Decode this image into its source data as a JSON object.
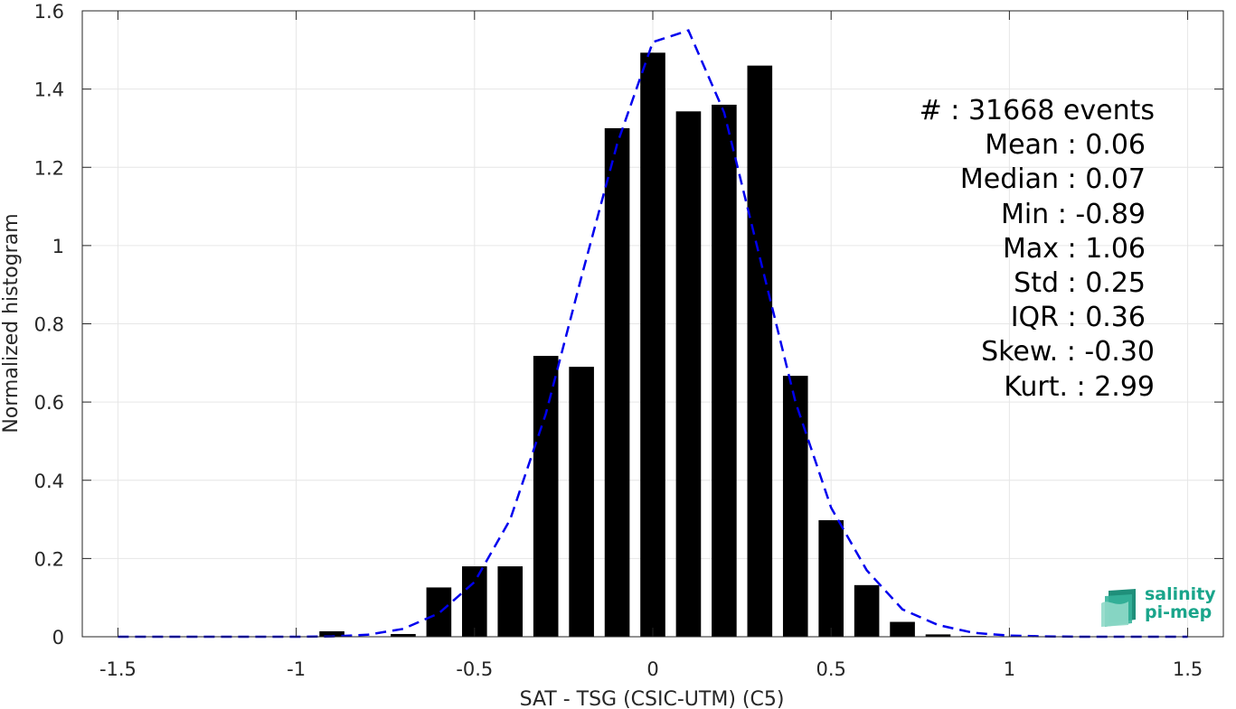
{
  "chart_data": {
    "type": "bar",
    "xlabel": "SAT - TSG (CSIC-UTM) (C5)",
    "ylabel": "Normalized histogram",
    "xlim": [
      -1.6,
      1.6
    ],
    "ylim": [
      0,
      1.6
    ],
    "xticks": [
      -1.5,
      -1,
      -0.5,
      0,
      0.5,
      1,
      1.5
    ],
    "xtick_labels": [
      "-1.5",
      "-1",
      "-0.5",
      "0",
      "0.5",
      "1",
      "1.5"
    ],
    "yticks": [
      0,
      0.2,
      0.4,
      0.6,
      0.8,
      1,
      1.2,
      1.4,
      1.6
    ],
    "ytick_labels": [
      "0",
      "0.2",
      "0.4",
      "0.6",
      "0.8",
      "1",
      "1.2",
      "1.4",
      "1.6"
    ],
    "grid": true,
    "bar_width": 0.07,
    "bars": {
      "x": [
        -0.9,
        -0.8,
        -0.7,
        -0.6,
        -0.5,
        -0.4,
        -0.3,
        -0.2,
        -0.1,
        0,
        0.1,
        0.2,
        0.3,
        0.4,
        0.5,
        0.6,
        0.7,
        0.8,
        0.9,
        1.0
      ],
      "values": [
        0.014,
        0.001,
        0.007,
        0.126,
        0.18,
        0.18,
        0.718,
        0.69,
        1.3,
        1.493,
        1.343,
        1.36,
        1.46,
        0.667,
        0.298,
        0.132,
        0.038,
        0.006,
        0.002,
        0.001
      ],
      "color": "#000000"
    },
    "fit": {
      "style": "dashed",
      "color": "#0000ee",
      "x": [
        -1.5,
        -1.4,
        -1.3,
        -1.2,
        -1.1,
        -1.0,
        -0.9,
        -0.8,
        -0.7,
        -0.6,
        -0.5,
        -0.4,
        -0.3,
        -0.2,
        -0.1,
        0,
        0.1,
        0.2,
        0.3,
        0.4,
        0.5,
        0.6,
        0.7,
        0.8,
        0.9,
        1.0,
        1.1,
        1.2,
        1.3,
        1.4,
        1.5
      ],
      "y": [
        0,
        0,
        0,
        0,
        0,
        0,
        0.001,
        0.005,
        0.02,
        0.06,
        0.14,
        0.3,
        0.57,
        0.92,
        1.26,
        1.52,
        1.55,
        1.34,
        0.97,
        0.6,
        0.33,
        0.17,
        0.07,
        0.03,
        0.01,
        0.003,
        0.001,
        0,
        0,
        0,
        0
      ]
    }
  },
  "stats": {
    "lines": [
      "#  : 31668 events",
      "Mean : 0.06",
      "Median : 0.07",
      "Min : -0.89",
      "Max : 1.06",
      "Std : 0.25",
      "IQR : 0.36",
      "Skew. : -0.30",
      "Kurt. : 2.99"
    ]
  },
  "logo": {
    "line1": "salinity",
    "line2": "pi-mep"
  }
}
